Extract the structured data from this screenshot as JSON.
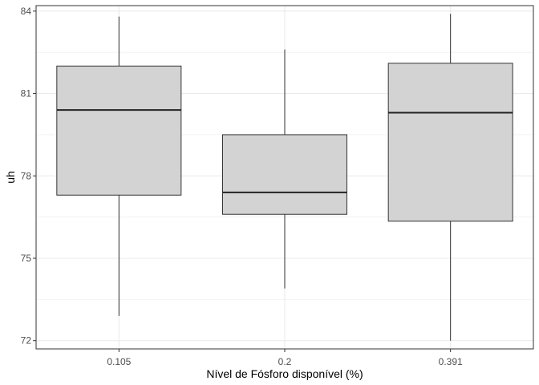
{
  "chart_data": {
    "type": "boxplot",
    "xlabel": "Nível de Fósforo disponível (%)",
    "ylabel": "uh",
    "categories": [
      "0.105",
      "0.2",
      "0.391"
    ],
    "boxes": [
      {
        "category": "0.105",
        "whisker_low": 72.9,
        "q1": 77.3,
        "median": 80.4,
        "q3": 82.0,
        "whisker_high": 83.8
      },
      {
        "category": "0.2",
        "whisker_low": 73.9,
        "q1": 76.6,
        "median": 77.4,
        "q3": 79.5,
        "whisker_high": 82.6
      },
      {
        "category": "0.391",
        "whisker_low": 72.0,
        "q1": 76.35,
        "median": 80.3,
        "q3": 82.1,
        "whisker_high": 83.9
      }
    ],
    "y_ticks": [
      72,
      75,
      78,
      81,
      84
    ],
    "ylim": [
      71.7,
      84.2
    ],
    "grid": true,
    "colors": {
      "box_fill": "#d3d3d3",
      "box_stroke": "#333333",
      "grid": "#ebebeb",
      "panel_border": "#333333"
    }
  }
}
